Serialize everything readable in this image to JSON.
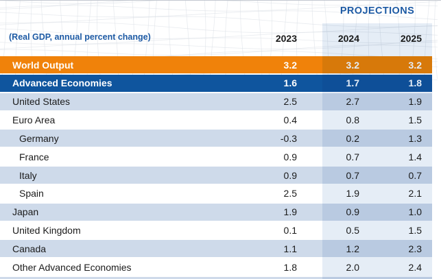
{
  "header": {
    "projections_label": "PROJECTIONS",
    "subtitle": "(Real GDP, annual percent change)"
  },
  "chart_data": {
    "type": "table",
    "title": "PROJECTIONS",
    "subtitle": "(Real GDP, annual percent change)",
    "columns": [
      "2023",
      "2024",
      "2025"
    ],
    "projection_columns": [
      "2024",
      "2025"
    ],
    "rows": [
      {
        "label": "World Output",
        "values": [
          "3.2",
          "3.2",
          "3.2"
        ],
        "style": "orange",
        "indent": false
      },
      {
        "label": "Advanced Economies",
        "values": [
          "1.6",
          "1.7",
          "1.8"
        ],
        "style": "blue",
        "indent": false
      },
      {
        "label": "United States",
        "values": [
          "2.5",
          "2.7",
          "1.9"
        ],
        "style": "light",
        "indent": false
      },
      {
        "label": "Euro Area",
        "values": [
          "0.4",
          "0.8",
          "1.5"
        ],
        "style": "white",
        "indent": false
      },
      {
        "label": "Germany",
        "values": [
          "-0.3",
          "0.2",
          "1.3"
        ],
        "style": "light",
        "indent": true
      },
      {
        "label": "France",
        "values": [
          "0.9",
          "0.7",
          "1.4"
        ],
        "style": "white",
        "indent": true
      },
      {
        "label": "Italy",
        "values": [
          "0.9",
          "0.7",
          "0.7"
        ],
        "style": "light",
        "indent": true
      },
      {
        "label": "Spain",
        "values": [
          "2.5",
          "1.9",
          "2.1"
        ],
        "style": "white",
        "indent": true
      },
      {
        "label": "Japan",
        "values": [
          "1.9",
          "0.9",
          "1.0"
        ],
        "style": "light",
        "indent": false
      },
      {
        "label": "United Kingdom",
        "values": [
          "0.1",
          "0.5",
          "1.5"
        ],
        "style": "white",
        "indent": false
      },
      {
        "label": "Canada",
        "values": [
          "1.1",
          "1.2",
          "2.3"
        ],
        "style": "light",
        "indent": false
      },
      {
        "label": "Other Advanced Economies",
        "values": [
          "1.8",
          "2.0",
          "2.4"
        ],
        "style": "white",
        "indent": false
      }
    ]
  },
  "colors": {
    "world_output_row_orange": "#F0820A",
    "advanced_economies_row_blue": "#0F559E",
    "stripe_row_light_blue": "#CEDAEA",
    "projection_band_tint": "#E5EDF6",
    "heading_blue": "#1D5AA4",
    "text_dark": "#1A1A1A"
  }
}
